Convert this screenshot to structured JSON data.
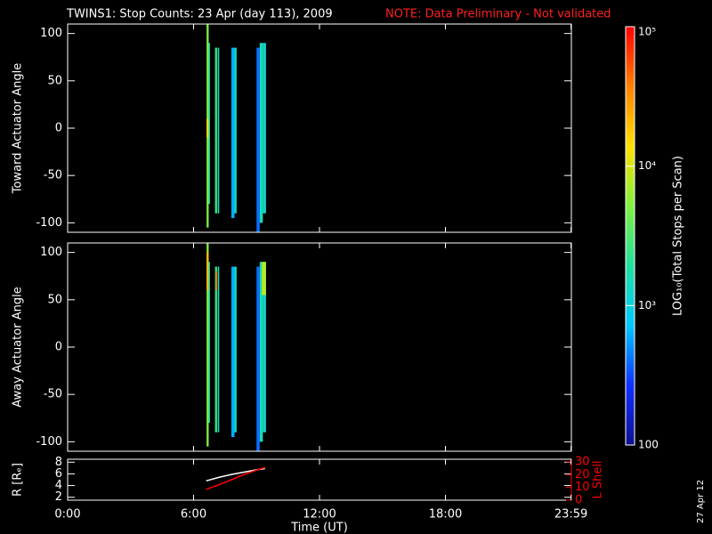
{
  "title": "TWINS1: Stop Counts: 23 Apr (day 113), 2009",
  "note": "NOTE: Data Preliminary - Not validated",
  "stamp": "27 Apr 12",
  "colorbar": {
    "label": "LOG₁₀(Total Stops per Scan)",
    "lim": [
      100,
      100000
    ],
    "log": true,
    "colormap": [
      "#101090",
      "#1030ff",
      "#00c8ff",
      "#20e0a0",
      "#80f040",
      "#ffe000",
      "#ff8000",
      "#ff0000"
    ],
    "ticks": [
      {
        "value": 100000,
        "label": "10⁵"
      },
      {
        "value": 10000,
        "label": "10⁴"
      },
      {
        "value": 1000,
        "label": "10³"
      },
      100
    ]
  },
  "chart_data": [
    {
      "type": "heatmap",
      "ylabel": "Toward Actuator Angle",
      "xlim": [
        0,
        24
      ],
      "ylim": [
        -110,
        110
      ],
      "yticks": [
        -100,
        -50,
        0,
        50,
        100
      ],
      "cells": [
        {
          "x": [
            6.62,
            6.72
          ],
          "y": [
            -105,
            110
          ],
          "value": 5000
        },
        {
          "x": [
            6.62,
            6.72
          ],
          "y": [
            -10,
            10
          ],
          "value": 15000
        },
        {
          "x": [
            6.72,
            6.78
          ],
          "y": [
            -80,
            90
          ],
          "value": 1500
        },
        {
          "x": [
            7.02,
            7.12
          ],
          "y": [
            -90,
            85
          ],
          "value": 2500
        },
        {
          "x": [
            7.15,
            7.22
          ],
          "y": [
            -90,
            85
          ],
          "value": 1500
        },
        {
          "x": [
            7.8,
            7.95
          ],
          "y": [
            -95,
            85
          ],
          "value": 600
        },
        {
          "x": [
            7.95,
            8.05
          ],
          "y": [
            -90,
            85
          ],
          "value": 1500
        },
        {
          "x": [
            9.0,
            9.15
          ],
          "y": [
            -110,
            85
          ],
          "value": 400
        },
        {
          "x": [
            9.15,
            9.3
          ],
          "y": [
            -100,
            90
          ],
          "value": 1500
        },
        {
          "x": [
            9.3,
            9.45
          ],
          "y": [
            -90,
            90
          ],
          "value": 1200
        }
      ]
    },
    {
      "type": "heatmap",
      "ylabel": "Away Actuator Angle",
      "xlim": [
        0,
        24
      ],
      "ylim": [
        -110,
        110
      ],
      "yticks": [
        -100,
        -50,
        0,
        50,
        100
      ],
      "cells": [
        {
          "x": [
            6.62,
            6.72
          ],
          "y": [
            -105,
            110
          ],
          "value": 5000
        },
        {
          "x": [
            6.62,
            6.72
          ],
          "y": [
            60,
            100
          ],
          "value": 20000
        },
        {
          "x": [
            6.72,
            6.78
          ],
          "y": [
            -80,
            90
          ],
          "value": 1500
        },
        {
          "x": [
            7.02,
            7.12
          ],
          "y": [
            -90,
            85
          ],
          "value": 2500
        },
        {
          "x": [
            7.05,
            7.12
          ],
          "y": [
            60,
            80
          ],
          "value": 40000
        },
        {
          "x": [
            7.15,
            7.22
          ],
          "y": [
            -90,
            85
          ],
          "value": 1500
        },
        {
          "x": [
            7.8,
            7.95
          ],
          "y": [
            -95,
            85
          ],
          "value": 600
        },
        {
          "x": [
            7.95,
            8.05
          ],
          "y": [
            -90,
            85
          ],
          "value": 1500
        },
        {
          "x": [
            9.0,
            9.15
          ],
          "y": [
            -110,
            85
          ],
          "value": 400
        },
        {
          "x": [
            9.15,
            9.3
          ],
          "y": [
            -100,
            90
          ],
          "value": 1500
        },
        {
          "x": [
            9.3,
            9.45
          ],
          "y": [
            -90,
            90
          ],
          "value": 1200
        },
        {
          "x": [
            9.25,
            9.45
          ],
          "y": [
            55,
            90
          ],
          "value": 8000
        }
      ]
    },
    {
      "type": "line",
      "ylabel": "R [Rₑ]",
      "y2label": "L Shell",
      "y2color": "#ff0000",
      "xlabel": "Time (UT)",
      "xlim": [
        0,
        24
      ],
      "xticks": [
        {
          "value": 0,
          "label": "0:00"
        },
        {
          "value": 6,
          "label": "6:00"
        },
        {
          "value": 12,
          "label": "12:00"
        },
        {
          "value": 18,
          "label": "18:00"
        },
        {
          "value": 23.983,
          "label": "23:59"
        }
      ],
      "ylim": [
        1.5,
        8.5
      ],
      "yticks": [
        2,
        4,
        6,
        8
      ],
      "y2lim": [
        0,
        32
      ],
      "y2ticks": [
        0,
        10,
        20,
        30
      ],
      "series": [
        {
          "color": "#ffffff",
          "x": [
            6.6,
            7.2,
            7.8,
            8.4,
            9.0,
            9.4
          ],
          "values": [
            4.8,
            5.4,
            5.9,
            6.3,
            6.7,
            6.9
          ]
        },
        {
          "color": "#ff0000",
          "axis": "y2",
          "x": [
            6.6,
            7.2,
            7.8,
            8.4,
            9.0,
            9.4
          ],
          "values": [
            8.5,
            12,
            16,
            20,
            23.5,
            25.5
          ]
        }
      ]
    }
  ]
}
